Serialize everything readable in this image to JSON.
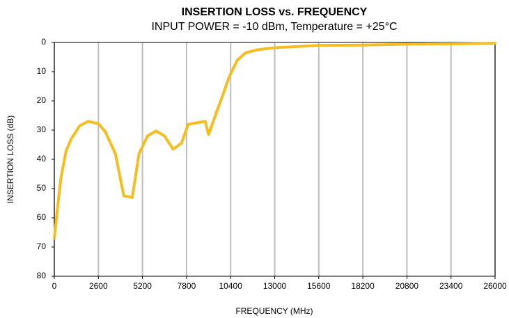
{
  "chart_data": {
    "type": "line",
    "title": "INSERTION LOSS vs. FREQUENCY",
    "subtitle": "INPUT POWER = -10 dBm, Temperature = +25°C",
    "x_label": "FREQUENCY (MHz)",
    "y_label": "INSERTION LOSS (dB)",
    "x": [
      0,
      200,
      400,
      700,
      1000,
      1500,
      2000,
      2600,
      3000,
      3600,
      4100,
      4600,
      5000,
      5500,
      6000,
      6500,
      7000,
      7500,
      7900,
      8900,
      9100,
      9500,
      10000,
      10300,
      10800,
      11300,
      12000,
      13000,
      15600,
      18200,
      20800,
      23400,
      26000
    ],
    "values": [
      67,
      56,
      46,
      37,
      33,
      28.5,
      27,
      27.8,
      30.5,
      38,
      52.5,
      53,
      38,
      32,
      30.3,
      32,
      36.5,
      34.5,
      28,
      27,
      31.5,
      25,
      17,
      12,
      6,
      3.5,
      2.5,
      1.8,
      1.0,
      0.9,
      0.6,
      0.5,
      0.3
    ],
    "color": "#f5bd1f",
    "xlim": [
      0,
      26000
    ],
    "xticks": [
      0,
      2600,
      5200,
      7800,
      10400,
      13000,
      15600,
      18200,
      20800,
      23400,
      26000
    ],
    "ylim": [
      0,
      80
    ],
    "yticks": [
      0,
      10,
      20,
      30,
      40,
      50,
      60,
      70,
      80
    ],
    "y_reversed": true,
    "grid": "x"
  }
}
